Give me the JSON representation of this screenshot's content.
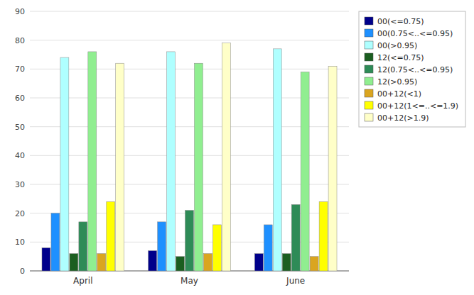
{
  "chart_data": {
    "type": "bar",
    "categories": [
      "April",
      "May",
      "June"
    ],
    "series": [
      {
        "name": "00(<=0.75)",
        "values": [
          8,
          7,
          6
        ],
        "color": "#00008B"
      },
      {
        "name": "00(0.75<..<=0.95)",
        "values": [
          20,
          17,
          16
        ],
        "color": "#1E90FF"
      },
      {
        "name": "00(>0.95)",
        "values": [
          74,
          76,
          77
        ],
        "color": "#AFFFFF"
      },
      {
        "name": "12(<=0.75)",
        "values": [
          6,
          5,
          6
        ],
        "color": "#1B5E20"
      },
      {
        "name": "12(0.75<..<=0.95)",
        "values": [
          17,
          21,
          23
        ],
        "color": "#2E8B57"
      },
      {
        "name": "12(>0.95)",
        "values": [
          76,
          72,
          69
        ],
        "color": "#90EE90"
      },
      {
        "name": "00+12(<1)",
        "values": [
          6,
          6,
          5
        ],
        "color": "#DAA520"
      },
      {
        "name": "00+12(1<=..<=1.9)",
        "values": [
          24,
          16,
          24
        ],
        "color": "#FFFF00"
      },
      {
        "name": "00+12(>1.9)",
        "values": [
          72,
          79,
          71
        ],
        "color": "#FFFFC8"
      }
    ],
    "ylim": [
      0,
      90
    ],
    "yticks": [
      0,
      10,
      20,
      30,
      40,
      50,
      60,
      70,
      80,
      90
    ],
    "grid": true,
    "legend": "right"
  }
}
